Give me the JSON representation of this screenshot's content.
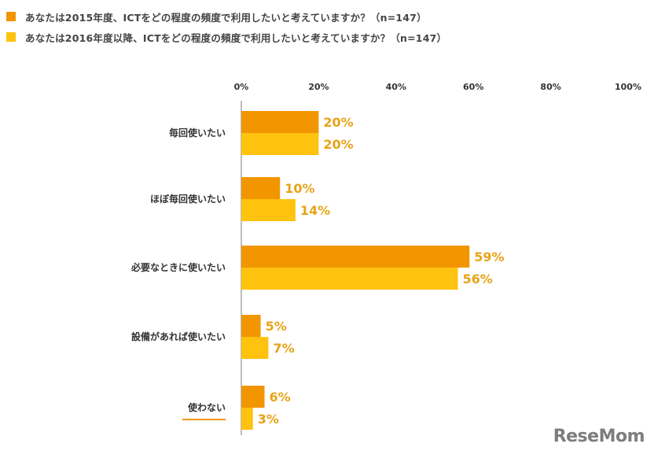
{
  "legend": {
    "items": [
      {
        "label": "あなたは2015年度、ICTをどの程度の頻度で利用したいと考えていますか？（n=147）",
        "color": "#F29600"
      },
      {
        "label": "あなたは2016年度以降、ICTをどの程度の頻度で利用したいと考えていますか？（n=147）",
        "color": "#FFC20E"
      }
    ]
  },
  "chart_data": {
    "type": "bar",
    "orientation": "horizontal",
    "categories": [
      "毎回使いたい",
      "ほぼ毎回使いたい",
      "必要なときに使いたい",
      "設備があれば使いたい",
      "使わない"
    ],
    "series": [
      {
        "name": "あなたは2015年度、ICTをどの程度の頻度で利用したいと考えていますか？（n=147）",
        "values": [
          20,
          10,
          59,
          5,
          6
        ],
        "color": "#F29600"
      },
      {
        "name": "あなたは2016年度以降、ICTをどの程度の頻度で利用したいと考えていますか？（n=147）",
        "values": [
          20,
          14,
          56,
          7,
          3
        ],
        "color": "#FFC20E"
      }
    ],
    "data_labels": [
      [
        "20%",
        "10%",
        "59%",
        "5%",
        "6%"
      ],
      [
        "20%",
        "14%",
        "56%",
        "7%",
        "3%"
      ]
    ],
    "xlim": [
      0,
      100
    ],
    "ticks": [
      "0%",
      "20%",
      "40%",
      "60%",
      "80%",
      "100%"
    ],
    "legend_position": "top-left",
    "grid": false,
    "label_color": "#E8A317",
    "underlined_category": "使わない",
    "underline_color": "#F29600"
  },
  "logo": {
    "main": "ReseMom"
  }
}
